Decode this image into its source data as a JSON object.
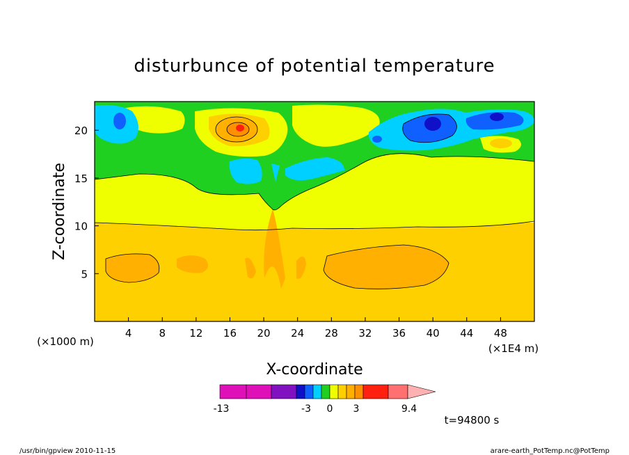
{
  "chart_data": {
    "type": "heatmap",
    "title": "disturbunce of potential temperature",
    "xlabel": "X-coordinate",
    "ylabel": "Z-coordinate",
    "x_unit_left": "(×1000 m)",
    "x_unit_right": "(×1E4 m)",
    "xlim": [
      0,
      52
    ],
    "ylim": [
      0,
      23
    ],
    "x_ticks": [
      4,
      8,
      12,
      16,
      20,
      24,
      28,
      32,
      36,
      40,
      44,
      48
    ],
    "y_ticks": [
      5,
      10,
      15,
      20
    ],
    "time_label": "t=94800 s",
    "colorbar": {
      "colors": [
        "#e010b8",
        "#e010b8",
        "#8010c0",
        "#1010c8",
        "#1060ff",
        "#00d0ff",
        "#20d020",
        "#f0ff00",
        "#ffd000",
        "#ffb000",
        "#ff9000",
        "#ff2010",
        "#ff7070",
        "#ffb0b0"
      ],
      "tick_labels": [
        "-13",
        "-3",
        "0",
        "3",
        "9.4"
      ]
    },
    "fields": [
      {
        "name": "band-yellow",
        "color": "#f0ff00"
      },
      {
        "name": "band-green",
        "color": "#20d020"
      },
      {
        "name": "band-cyan",
        "color": "#00d0ff"
      },
      {
        "name": "band-blue",
        "color": "#1060ff"
      },
      {
        "name": "band-navy",
        "color": "#1010c8"
      },
      {
        "name": "band-gold",
        "color": "#ffd000"
      },
      {
        "name": "band-orange",
        "color": "#ffb000"
      },
      {
        "name": "band-dark-orange",
        "color": "#ff9000"
      },
      {
        "name": "band-red",
        "color": "#ff2010"
      }
    ]
  },
  "footer": {
    "program": "/usr/bin/gpview   2010-11-15",
    "source": "arare-earth_PotTemp.nc@PotTemp"
  }
}
